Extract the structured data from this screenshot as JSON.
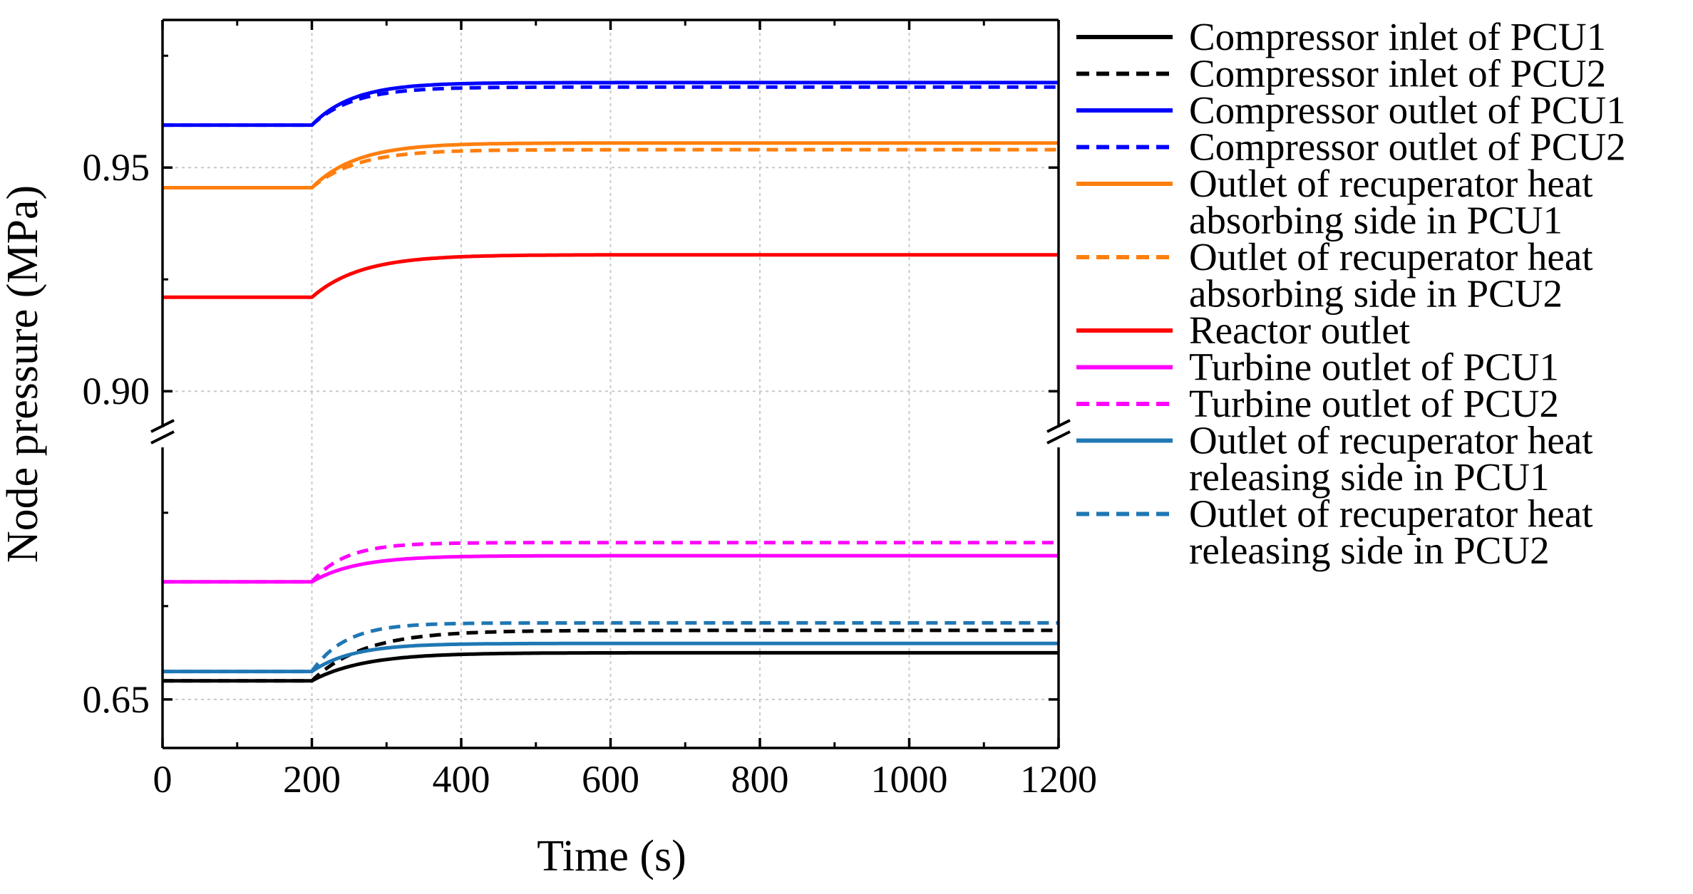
{
  "chart_data": {
    "type": "line",
    "title": "",
    "xlabel": "Time (s)",
    "ylabel": "Node pressure (MPa)",
    "xlim": [
      0,
      1200
    ],
    "x_ticks": [
      "0",
      "200",
      "400",
      "600",
      "800",
      "1000",
      "1200"
    ],
    "x_tick_values": [
      0,
      200,
      400,
      600,
      800,
      1000,
      1200
    ],
    "axis_break": true,
    "upper_panel": {
      "ylim": [
        0.89,
        0.983
      ],
      "ticks": [
        "0.90",
        "0.95"
      ],
      "tick_values": [
        0.9,
        0.95
      ]
    },
    "lower_panel": {
      "ylim": [
        0.637,
        0.72
      ],
      "ticks": [
        "0.65"
      ],
      "tick_values": [
        0.65
      ]
    },
    "grid": true,
    "legend_position": "right",
    "step_time": 200,
    "series": [
      {
        "name": "Compressor inlet of PCU1",
        "panel": "lower",
        "color": "#000000",
        "dash": "solid",
        "initial": 0.655,
        "final": 0.6625,
        "tau": 70
      },
      {
        "name": "Compressor inlet of PCU2",
        "panel": "lower",
        "color": "#000000",
        "dash": "dash",
        "initial": 0.655,
        "final": 0.6685,
        "tau": 70
      },
      {
        "name": "Compressor outlet of PCU1",
        "panel": "upper",
        "color": "#0000ff",
        "dash": "solid",
        "initial": 0.9595,
        "final": 0.969,
        "tau": 55
      },
      {
        "name": "Compressor outlet of PCU2",
        "panel": "upper",
        "color": "#0000ff",
        "dash": "dash",
        "initial": 0.9595,
        "final": 0.968,
        "tau": 55
      },
      {
        "name": "Outlet of recuperator heat absorbing side in PCU1",
        "panel": "upper",
        "color": "#ff7f0e",
        "dash": "solid",
        "initial": 0.9455,
        "final": 0.9555,
        "tau": 60
      },
      {
        "name": "Outlet of recuperator heat absorbing side in PCU2",
        "panel": "upper",
        "color": "#ff7f0e",
        "dash": "dash",
        "initial": 0.9455,
        "final": 0.954,
        "tau": 60
      },
      {
        "name": "Reactor outlet",
        "panel": "upper",
        "color": "#ff0000",
        "dash": "solid",
        "initial": 0.921,
        "final": 0.9305,
        "tau": 65
      },
      {
        "name": "Turbine outlet of PCU1",
        "panel": "lower",
        "color": "#ff00ff",
        "dash": "solid",
        "initial": 0.6815,
        "final": 0.6885,
        "tau": 60
      },
      {
        "name": "Turbine outlet of PCU2",
        "panel": "lower",
        "color": "#ff00ff",
        "dash": "dash",
        "initial": 0.6815,
        "final": 0.692,
        "tau": 45
      },
      {
        "name": "Outlet of recuperator heat releasing side in PCU1",
        "panel": "lower",
        "color": "#1f77b4",
        "dash": "solid",
        "initial": 0.6575,
        "final": 0.665,
        "tau": 55
      },
      {
        "name": "Outlet of recuperator heat releasing side in PCU2",
        "panel": "lower",
        "color": "#1f77b4",
        "dash": "dash",
        "initial": 0.6575,
        "final": 0.6705,
        "tau": 45
      }
    ],
    "legend_lines": [
      [
        "Compressor inlet of PCU1"
      ],
      [
        "Compressor inlet of PCU2"
      ],
      [
        "Compressor outlet of PCU1"
      ],
      [
        "Compressor outlet of PCU2"
      ],
      [
        "Outlet of recuperator heat",
        "absorbing side in PCU1"
      ],
      [
        "Outlet of recuperator heat",
        "absorbing side in PCU2"
      ],
      [
        "Reactor outlet"
      ],
      [
        "Turbine outlet of PCU1"
      ],
      [
        "Turbine outlet of PCU2"
      ],
      [
        "Outlet of recuperator heat",
        "releasing side in PCU1"
      ],
      [
        "Outlet of recuperator heat",
        "releasing side in PCU2"
      ]
    ]
  }
}
